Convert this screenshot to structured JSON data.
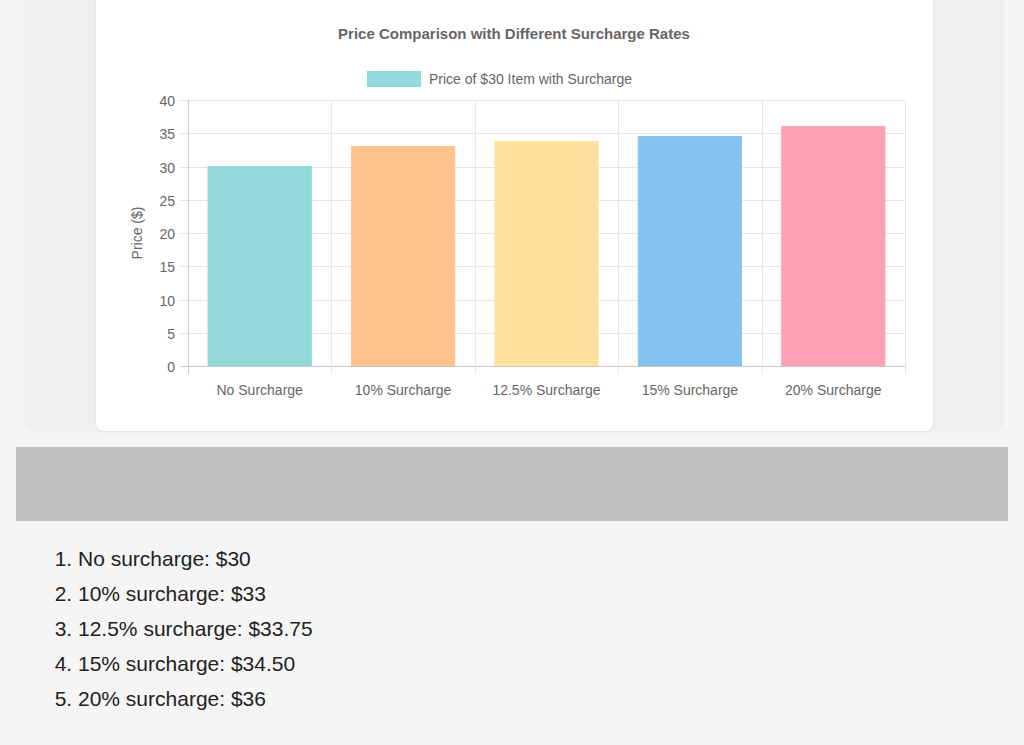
{
  "chart_data": {
    "type": "bar",
    "title": "Price Comparison with Different Surcharge Rates",
    "y_label": "Price ($)",
    "categories": [
      "No Surcharge",
      "10% Surcharge",
      "12.5% Surcharge",
      "15% Surcharge",
      "20% Surcharge"
    ],
    "series": [
      {
        "name": "Price of $30 Item with Surcharge",
        "values": [
          30,
          33,
          33.75,
          34.5,
          36
        ],
        "colors": [
          "#94d9d9",
          "#ffc48c",
          "#ffe09c",
          "#86c2f0",
          "#ffa0b4"
        ]
      }
    ],
    "ylim": [
      0,
      40
    ],
    "yticks": [
      0,
      5,
      10,
      15,
      20,
      25,
      30,
      35,
      40
    ],
    "grid": true,
    "legend": "top"
  },
  "notes": {
    "items": [
      "No surcharge: $30",
      "10% surcharge: $33",
      "12.5% surcharge: $33.75",
      "15% surcharge: $34.50",
      "20% surcharge: $36"
    ]
  }
}
